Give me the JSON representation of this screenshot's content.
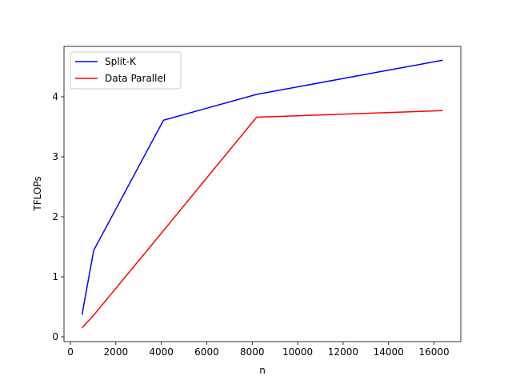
{
  "chart_data": {
    "type": "line",
    "x_label": "n",
    "y_label": "TFLOPs",
    "x": [
      512,
      1024,
      4096,
      8192,
      16384
    ],
    "series": [
      {
        "name": "Split-K",
        "color": "#0000ff",
        "values": [
          0.37,
          1.44,
          3.61,
          4.04,
          4.61
        ]
      },
      {
        "name": "Data Parallel",
        "color": "#ff0000",
        "values": [
          0.15,
          0.36,
          1.77,
          3.66,
          3.77
        ]
      }
    ],
    "xlim": [
      -282,
      17178
    ],
    "ylim": [
      -0.08,
      4.84
    ],
    "xticks": [
      0,
      2000,
      4000,
      6000,
      8000,
      10000,
      12000,
      14000,
      16000
    ],
    "yticks": [
      0,
      1,
      2,
      3,
      4
    ],
    "legend": "upper left",
    "grid": false
  }
}
